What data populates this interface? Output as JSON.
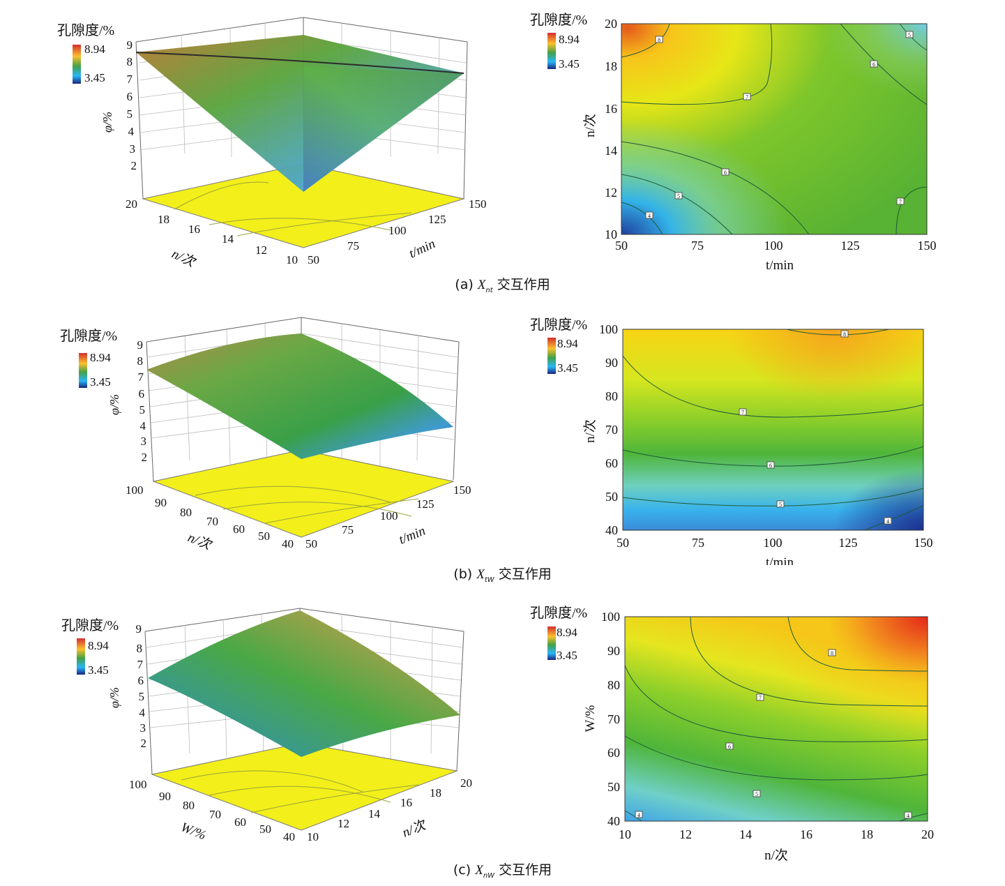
{
  "colorbar": {
    "title": "孔隙度/%",
    "max_label": "8.94",
    "min_label": "3.45",
    "colors": [
      "#d32f2f",
      "#fbc02d",
      "#43a047",
      "#29b6f6",
      "#1a237e"
    ]
  },
  "panels": [
    {
      "id": "a",
      "caption": {
        "prefix": "(a) ",
        "var": "X",
        "sub": "nt",
        "suffix": " 交互作用"
      },
      "surface": {
        "zlabel": "φ/%",
        "z_ticks": [
          "9",
          "8",
          "7",
          "6",
          "5",
          "4",
          "3",
          "2"
        ],
        "left_axis_label": "n/次",
        "left_ticks": [
          "20",
          "18",
          "16",
          "14",
          "12",
          "10"
        ],
        "right_axis_label": "t/min",
        "right_ticks": [
          "50",
          "75",
          "100",
          "125",
          "150"
        ],
        "shape": "saddle"
      },
      "contour": {
        "xlabel": "t/min",
        "ylabel": "n/次",
        "x_ticks": [
          "50",
          "75",
          "100",
          "125",
          "150"
        ],
        "y_ticks": [
          "10",
          "12",
          "14",
          "16",
          "18",
          "20"
        ],
        "levels": [
          "8",
          "7",
          "6",
          "5",
          "4",
          "5",
          "6",
          "7"
        ]
      }
    },
    {
      "id": "b",
      "caption": {
        "prefix": "(b) ",
        "var": "X",
        "sub": "tW",
        "suffix": " 交互作用"
      },
      "surface": {
        "zlabel": "φ/%",
        "z_ticks": [
          "9",
          "8",
          "7",
          "6",
          "5",
          "4",
          "3",
          "2"
        ],
        "left_axis_label": "n/次",
        "left_ticks": [
          "100",
          "90",
          "80",
          "70",
          "60",
          "50",
          "40"
        ],
        "right_axis_label": "t/min",
        "right_ticks": [
          "50",
          "75",
          "100",
          "125",
          "150"
        ],
        "shape": "dome"
      },
      "contour": {
        "xlabel": "t/min",
        "ylabel": "n/次",
        "x_ticks": [
          "50",
          "75",
          "100",
          "125",
          "150"
        ],
        "y_ticks": [
          "40",
          "50",
          "60",
          "70",
          "80",
          "90",
          "100"
        ],
        "levels": [
          "8",
          "7",
          "6",
          "5",
          "4"
        ]
      }
    },
    {
      "id": "c",
      "caption": {
        "prefix": "(c) ",
        "var": "X",
        "sub": "nW",
        "suffix": " 交互作用"
      },
      "surface": {
        "zlabel": "φ/%",
        "z_ticks": [
          "9",
          "8",
          "7",
          "6",
          "5",
          "4",
          "3",
          "2"
        ],
        "left_axis_label": "W/%",
        "left_ticks": [
          "100",
          "90",
          "80",
          "70",
          "60",
          "50",
          "40"
        ],
        "right_axis_label": "n/次",
        "right_ticks": [
          "10",
          "12",
          "14",
          "16",
          "18",
          "20"
        ],
        "shape": "rise"
      },
      "contour": {
        "xlabel": "n/次",
        "ylabel": "W/%",
        "x_ticks": [
          "10",
          "12",
          "14",
          "16",
          "18",
          "20"
        ],
        "y_ticks": [
          "40",
          "50",
          "60",
          "70",
          "80",
          "90",
          "100"
        ],
        "levels": [
          "8",
          "7",
          "6",
          "5",
          "4",
          "4"
        ]
      }
    }
  ]
}
